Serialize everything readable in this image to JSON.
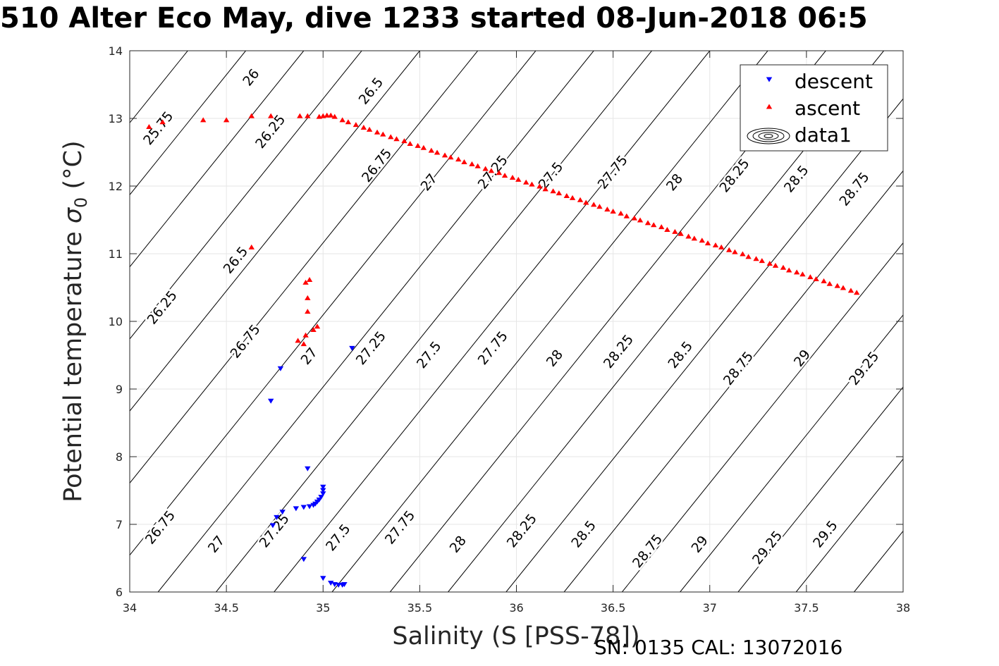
{
  "title": "510 Alter Eco May, dive 1233 started 08-Jun-2018 06:5",
  "footer": "SN: 0135  CAL: 13072016",
  "chart_data": {
    "type": "scatter",
    "xlabel": "Salinity (S [PSS-78])",
    "ylabel": "Potential temperature σ₀ (°C)",
    "xlim": [
      34,
      38
    ],
    "ylim": [
      6,
      14
    ],
    "xticks": [
      34,
      34.5,
      35,
      35.5,
      36,
      36.5,
      37,
      37.5,
      38
    ],
    "xticklabels": [
      "34",
      "34.5",
      "35",
      "35.5",
      "36",
      "36.5",
      "37",
      "37.5",
      "38"
    ],
    "yticks": [
      6,
      7,
      8,
      9,
      10,
      11,
      12,
      13,
      14
    ],
    "yticklabels": [
      "6",
      "7",
      "8",
      "9",
      "10",
      "11",
      "12",
      "13",
      "14"
    ],
    "grid": true,
    "legend_position": "top-right",
    "colors": {
      "descent": "#0000ff",
      "ascent": "#ff0000",
      "contour": "#000000",
      "grid": "#e6e6e6"
    },
    "legend": [
      {
        "name": "descent",
        "marker": "triangle-down",
        "color": "#0000ff"
      },
      {
        "name": "ascent",
        "marker": "triangle-up",
        "color": "#ff0000"
      },
      {
        "name": "data1",
        "marker": "contour",
        "color": "#000000"
      }
    ],
    "series": [
      {
        "name": "descent",
        "marker": "triangle-down",
        "color": "#0000ff",
        "points": [
          [
            35.15,
            9.6
          ],
          [
            34.78,
            9.3
          ],
          [
            34.73,
            8.82
          ],
          [
            34.92,
            7.82
          ],
          [
            35.0,
            7.55
          ],
          [
            35.0,
            7.5
          ],
          [
            35.0,
            7.45
          ],
          [
            34.99,
            7.4
          ],
          [
            34.98,
            7.36
          ],
          [
            34.97,
            7.33
          ],
          [
            34.96,
            7.3
          ],
          [
            34.95,
            7.28
          ],
          [
            34.93,
            7.26
          ],
          [
            34.9,
            7.25
          ],
          [
            34.86,
            7.23
          ],
          [
            34.79,
            7.18
          ],
          [
            34.76,
            7.1
          ],
          [
            34.74,
            6.98
          ],
          [
            34.9,
            6.48
          ],
          [
            35.0,
            6.2
          ],
          [
            35.04,
            6.13
          ],
          [
            35.06,
            6.11
          ],
          [
            35.08,
            6.1
          ],
          [
            35.1,
            6.1
          ],
          [
            35.11,
            6.11
          ]
        ]
      },
      {
        "name": "ascent",
        "marker": "triangle-up",
        "color": "#ff0000",
        "points": [
          [
            34.1,
            12.88
          ],
          [
            34.17,
            12.95
          ],
          [
            34.38,
            12.98
          ],
          [
            34.5,
            12.98
          ],
          [
            34.63,
            13.04
          ],
          [
            34.73,
            13.04
          ],
          [
            34.88,
            13.04
          ],
          [
            34.92,
            13.04
          ],
          [
            34.98,
            13.03
          ],
          [
            35.0,
            13.04
          ],
          [
            35.02,
            13.05
          ],
          [
            35.04,
            13.05
          ],
          [
            35.06,
            13.03
          ],
          [
            35.1,
            12.98
          ],
          [
            35.13,
            12.95
          ],
          [
            35.17,
            12.91
          ],
          [
            35.21,
            12.87
          ],
          [
            35.24,
            12.84
          ],
          [
            35.28,
            12.8
          ],
          [
            35.31,
            12.77
          ],
          [
            35.35,
            12.73
          ],
          [
            35.38,
            12.7
          ],
          [
            35.42,
            12.67
          ],
          [
            35.45,
            12.63
          ],
          [
            35.49,
            12.6
          ],
          [
            35.52,
            12.57
          ],
          [
            35.56,
            12.53
          ],
          [
            35.59,
            12.5
          ],
          [
            35.63,
            12.46
          ],
          [
            35.66,
            12.43
          ],
          [
            35.7,
            12.4
          ],
          [
            35.73,
            12.36
          ],
          [
            35.77,
            12.33
          ],
          [
            35.8,
            12.3
          ],
          [
            35.84,
            12.26
          ],
          [
            35.87,
            12.23
          ],
          [
            35.91,
            12.2
          ],
          [
            35.94,
            12.16
          ],
          [
            35.98,
            12.13
          ],
          [
            36.01,
            12.1
          ],
          [
            36.05,
            12.06
          ],
          [
            36.08,
            12.03
          ],
          [
            36.12,
            12.0
          ],
          [
            36.15,
            11.96
          ],
          [
            36.19,
            11.93
          ],
          [
            36.22,
            11.9
          ],
          [
            36.26,
            11.86
          ],
          [
            36.29,
            11.83
          ],
          [
            36.33,
            11.8
          ],
          [
            36.36,
            11.76
          ],
          [
            36.4,
            11.73
          ],
          [
            36.43,
            11.7
          ],
          [
            36.47,
            11.66
          ],
          [
            36.5,
            11.63
          ],
          [
            36.54,
            11.6
          ],
          [
            36.57,
            11.56
          ],
          [
            36.61,
            11.53
          ],
          [
            36.64,
            11.5
          ],
          [
            36.68,
            11.46
          ],
          [
            36.71,
            11.43
          ],
          [
            36.75,
            11.4
          ],
          [
            36.78,
            11.36
          ],
          [
            36.82,
            11.33
          ],
          [
            36.85,
            11.3
          ],
          [
            36.89,
            11.26
          ],
          [
            36.92,
            11.23
          ],
          [
            36.96,
            11.2
          ],
          [
            36.99,
            11.16
          ],
          [
            37.03,
            11.13
          ],
          [
            37.06,
            11.1
          ],
          [
            37.1,
            11.06
          ],
          [
            37.13,
            11.03
          ],
          [
            37.17,
            11.0
          ],
          [
            37.2,
            10.96
          ],
          [
            37.24,
            10.93
          ],
          [
            37.27,
            10.9
          ],
          [
            37.31,
            10.86
          ],
          [
            37.34,
            10.83
          ],
          [
            37.38,
            10.8
          ],
          [
            37.41,
            10.76
          ],
          [
            37.45,
            10.73
          ],
          [
            37.48,
            10.7
          ],
          [
            37.52,
            10.66
          ],
          [
            37.55,
            10.63
          ],
          [
            37.59,
            10.6
          ],
          [
            37.62,
            10.56
          ],
          [
            37.66,
            10.53
          ],
          [
            37.69,
            10.5
          ],
          [
            37.73,
            10.46
          ],
          [
            37.76,
            10.43
          ],
          [
            34.63,
            11.1
          ],
          [
            34.93,
            10.62
          ],
          [
            34.91,
            10.58
          ],
          [
            34.92,
            10.35
          ],
          [
            34.92,
            10.15
          ],
          [
            34.97,
            9.93
          ],
          [
            34.95,
            9.88
          ],
          [
            34.91,
            9.8
          ],
          [
            34.87,
            9.72
          ],
          [
            34.9,
            9.67
          ]
        ]
      }
    ],
    "contours": {
      "name": "data1",
      "levels": [
        25.75,
        26,
        26.25,
        26.5,
        26.75,
        27,
        27.25,
        27.5,
        27.75,
        28,
        28.25,
        28.5,
        28.75,
        29,
        29.25,
        29.5
      ],
      "labels": [
        {
          "text": "25.75",
          "s": 34.15,
          "t": 12.85
        },
        {
          "text": "26",
          "s": 34.63,
          "t": 13.6
        },
        {
          "text": "26.25",
          "s": 34.73,
          "t": 12.8
        },
        {
          "text": "26.5",
          "s": 35.25,
          "t": 13.4
        },
        {
          "text": "26.75",
          "s": 35.28,
          "t": 12.3
        },
        {
          "text": "27",
          "s": 35.55,
          "t": 12.05
        },
        {
          "text": "27.25",
          "s": 35.88,
          "t": 12.2
        },
        {
          "text": "27.5",
          "s": 36.18,
          "t": 12.15
        },
        {
          "text": "27.75",
          "s": 36.5,
          "t": 12.2
        },
        {
          "text": "28",
          "s": 36.82,
          "t": 12.05
        },
        {
          "text": "28.25",
          "s": 37.13,
          "t": 12.15
        },
        {
          "text": "28.5",
          "s": 37.45,
          "t": 12.1
        },
        {
          "text": "28.75",
          "s": 37.75,
          "t": 11.95
        },
        {
          "text": "26.25",
          "s": 34.17,
          "t": 10.2
        },
        {
          "text": "26.5",
          "s": 34.55,
          "t": 10.9
        },
        {
          "text": "26.75",
          "s": 34.6,
          "t": 9.7
        },
        {
          "text": "27",
          "s": 34.93,
          "t": 9.48
        },
        {
          "text": "27.25",
          "s": 35.25,
          "t": 9.6
        },
        {
          "text": "27.5",
          "s": 35.55,
          "t": 9.5
        },
        {
          "text": "27.75",
          "s": 35.88,
          "t": 9.6
        },
        {
          "text": "28",
          "s": 36.2,
          "t": 9.45
        },
        {
          "text": "28.25",
          "s": 36.53,
          "t": 9.55
        },
        {
          "text": "28.5",
          "s": 36.85,
          "t": 9.5
        },
        {
          "text": "28.75",
          "s": 37.15,
          "t": 9.3
        },
        {
          "text": "29",
          "s": 37.48,
          "t": 9.45
        },
        {
          "text": "29.25",
          "s": 37.8,
          "t": 9.3
        },
        {
          "text": "26.75",
          "s": 34.16,
          "t": 6.95
        },
        {
          "text": "27",
          "s": 34.45,
          "t": 6.7
        },
        {
          "text": "27.25",
          "s": 34.75,
          "t": 6.9
        },
        {
          "text": "27.5",
          "s": 35.08,
          "t": 6.8
        },
        {
          "text": "27.75",
          "s": 35.4,
          "t": 6.95
        },
        {
          "text": "28",
          "s": 35.7,
          "t": 6.7
        },
        {
          "text": "28.25",
          "s": 36.03,
          "t": 6.9
        },
        {
          "text": "28.5",
          "s": 36.35,
          "t": 6.85
        },
        {
          "text": "28.75",
          "s": 36.68,
          "t": 6.6
        },
        {
          "text": "29",
          "s": 36.95,
          "t": 6.7
        },
        {
          "text": "29.25",
          "s": 37.3,
          "t": 6.65
        },
        {
          "text": "29.5",
          "s": 37.6,
          "t": 6.85
        }
      ]
    }
  }
}
